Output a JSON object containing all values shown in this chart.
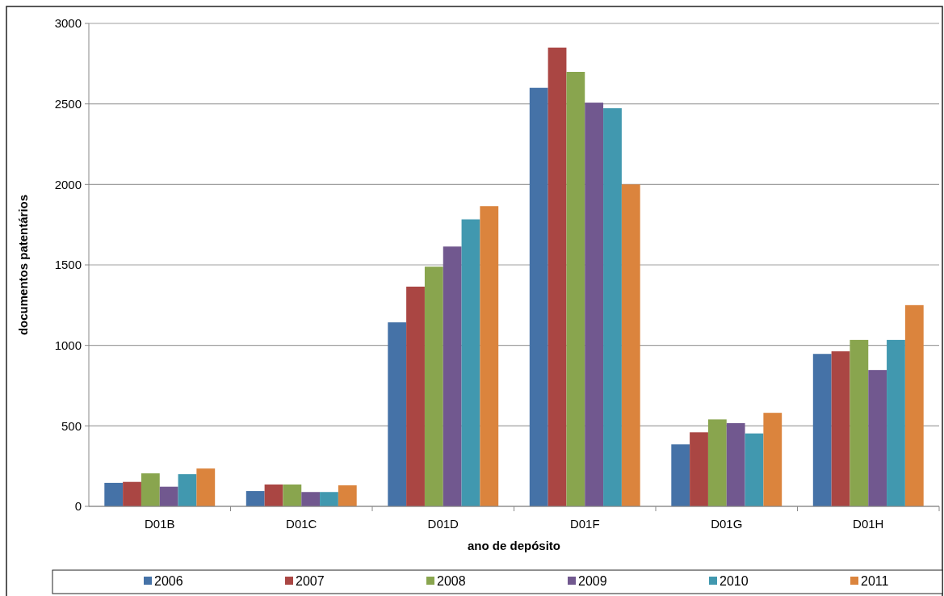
{
  "chart_data": {
    "type": "bar",
    "xlabel": "ano de depósito",
    "ylabel": "documentos patentários",
    "categories": [
      "D01B",
      "D01C",
      "D01D",
      "D01F",
      "D01G",
      "D01H"
    ],
    "series": [
      {
        "name": "2006",
        "color": "#4572a7",
        "values": [
          146,
          95,
          1143,
          2600,
          385,
          947
        ]
      },
      {
        "name": "2007",
        "color": "#aa4643",
        "values": [
          152,
          136,
          1365,
          2850,
          460,
          963
        ]
      },
      {
        "name": "2008",
        "color": "#89a54e",
        "values": [
          205,
          136,
          1489,
          2699,
          540,
          1034
        ]
      },
      {
        "name": "2009",
        "color": "#71588f",
        "values": [
          122,
          89,
          1614,
          2508,
          517,
          847
        ]
      },
      {
        "name": "2010",
        "color": "#4198af",
        "values": [
          200,
          89,
          1783,
          2473,
          453,
          1034
        ]
      },
      {
        "name": "2011",
        "color": "#db843d",
        "values": [
          235,
          131,
          1865,
          2000,
          581,
          1250
        ]
      }
    ],
    "ylim": [
      0,
      3000
    ],
    "yticks": [
      0,
      500,
      1000,
      1500,
      2000,
      2500,
      3000
    ],
    "grid": "y",
    "legend": "bottom"
  }
}
